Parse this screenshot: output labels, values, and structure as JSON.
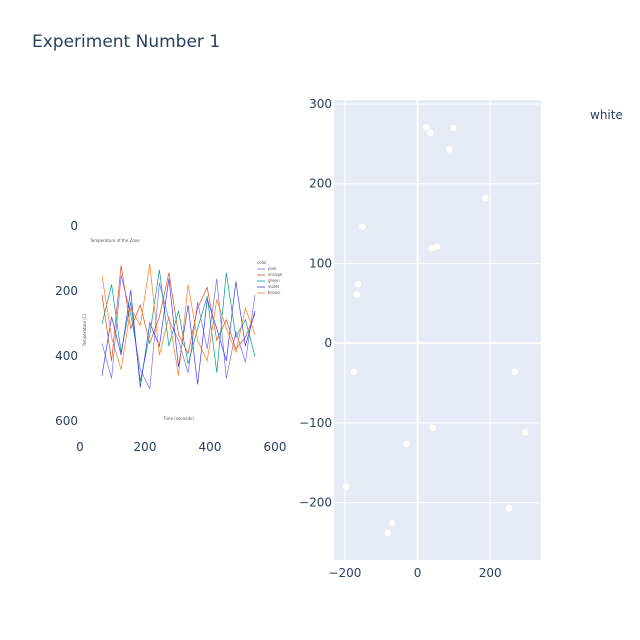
{
  "title": "Experiment Number 1",
  "chart_data": [
    {
      "type": "image",
      "xlim": [
        0,
        640
      ],
      "ylim": [
        640,
        0
      ],
      "x_ticks": [
        "0",
        "200",
        "400",
        "600"
      ],
      "y_ticks": [
        "0",
        "200",
        "400",
        "600"
      ],
      "embedded_chart": {
        "type": "line",
        "title": "Temperature of the Zone",
        "xlabel": "Time (seconds)",
        "ylabel": "Temperature (C)",
        "legend_title": "color",
        "legend": [
          "pink",
          "orange",
          "green",
          "violet",
          "brown"
        ],
        "series": [
          {
            "name": "pink",
            "color": "#7b6cf6",
            "values": [
              42,
              18,
              88,
              62,
              24,
              11,
              83,
              58,
              44,
              22,
              70,
              38,
              86,
              18,
              50,
              29,
              75
            ]
          },
          {
            "name": "orange",
            "color": "#e04a1a",
            "values": [
              75,
              30,
              95,
              52,
              68,
              42,
              60,
              90,
              48,
              35,
              66,
              80,
              44,
              58,
              38,
              46,
              62
            ]
          },
          {
            "name": "green",
            "color": "#00a080",
            "values": [
              55,
              82,
              36,
              70,
              16,
              48,
              92,
              40,
              64,
              28,
              52,
              74,
              22,
              90,
              46,
              58,
              33
            ]
          },
          {
            "name": "violet",
            "color": "#3d3df0",
            "values": [
              20,
              60,
              34,
              78,
              12,
              56,
              40,
              86,
              26,
              68,
              14,
              72,
              52,
              30,
              84,
              40,
              64
            ]
          },
          {
            "name": "brown",
            "color": "#ff7a1a",
            "values": [
              88,
              46,
              24,
              66,
              54,
              96,
              34,
              60,
              20,
              82,
              44,
              30,
              72,
              52,
              36,
              66,
              48
            ]
          }
        ]
      }
    },
    {
      "type": "scatter",
      "legend": [
        "white"
      ],
      "series": [
        {
          "name": "white",
          "color": "#ffffff",
          "x": [
            24,
            35,
            88,
            98,
            187,
            40,
            53,
            -152,
            -164,
            -167,
            -176,
            268,
            42,
            297,
            -30,
            -196,
            252,
            -70,
            -82
          ],
          "y": [
            271,
            264,
            243,
            270,
            182,
            119,
            121,
            146,
            74,
            61,
            -36,
            -36,
            -106,
            -112,
            -126,
            -180,
            -207,
            -226,
            -238
          ]
        }
      ],
      "xlim": [
        -230,
        340
      ],
      "ylim": [
        -272,
        305
      ],
      "x_ticks": [
        -200,
        0,
        200
      ],
      "y_ticks": [
        -200,
        -100,
        0,
        100,
        200,
        300
      ],
      "grid": true
    }
  ]
}
